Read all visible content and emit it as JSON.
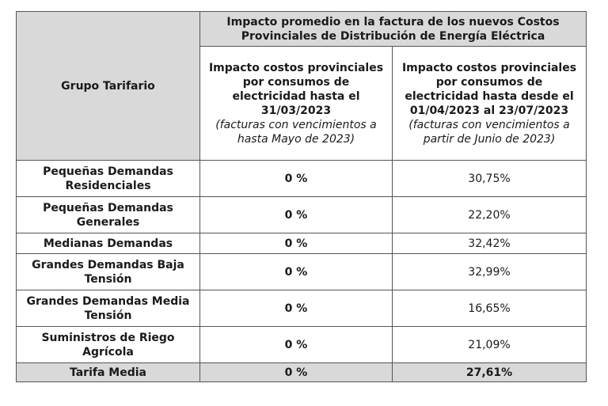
{
  "table": {
    "corner_header": "Grupo Tarifario",
    "main_header": {
      "line1": "Impacto promedio en la factura de los nuevos Costos",
      "line2": "Provinciales de Distribución de Energía Eléctrica"
    },
    "col_a": {
      "line1": "Impacto costos provinciales",
      "line2": "por consumos de",
      "line3": "electricidad hasta el",
      "line4": "31/03/2023",
      "note1": "(facturas con vencimientos a",
      "note2": "hasta Mayo de 2023)"
    },
    "col_b": {
      "line1": "Impacto costos provinciales",
      "line2": "por consumos de",
      "line3": "electricidad hasta desde el",
      "line4": "01/04/2023 al 23/07/2023",
      "note1": "(facturas con vencimientos a",
      "note2": "partir de Junio de 2023)"
    },
    "rows": [
      {
        "name1": "Pequeñas Demandas",
        "name2": "Residenciales",
        "a": "0 %",
        "b": "30,75%"
      },
      {
        "name1": "Pequeñas Demandas",
        "name2": "Generales",
        "a": "0 %",
        "b": "22,20%"
      },
      {
        "name1": "Medianas Demandas",
        "name2": "",
        "a": "0 %",
        "b": "32,42%"
      },
      {
        "name1": "Grandes Demandas Baja",
        "name2": "Tensión",
        "a": "0 %",
        "b": "32,99%"
      },
      {
        "name1": "Grandes Demandas Media",
        "name2": "Tensión",
        "a": "0 %",
        "b": "16,65%"
      },
      {
        "name1": "Suministros de Riego",
        "name2": "Agrícola",
        "a": "0 %",
        "b": "21,09%"
      }
    ],
    "footer": {
      "name": "Tarifa Media",
      "a": "0 %",
      "b": "27,61%"
    }
  }
}
